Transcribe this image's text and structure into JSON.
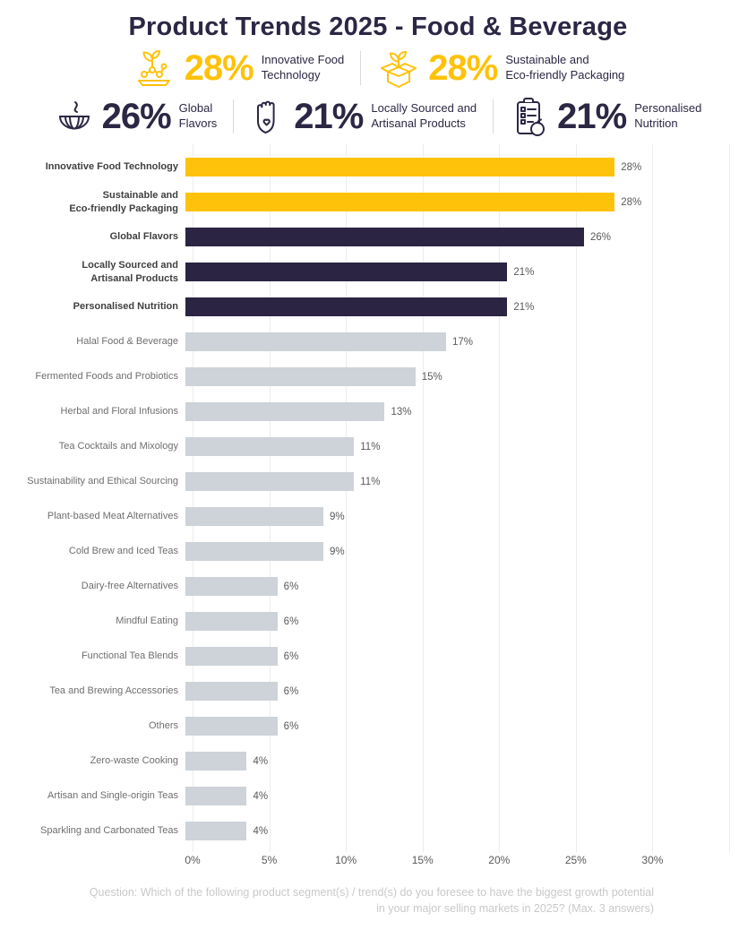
{
  "title": "Product Trends 2025 - Food & Beverage",
  "colors": {
    "yellow": "#FFC20A",
    "navy": "#2B2442",
    "gray": "#CDD3D8",
    "title_navy": "#2B2744"
  },
  "stats": [
    {
      "icon": "food-technology-icon",
      "value": "28%",
      "label": "Innovative Food\nTechnology",
      "color": "yellow"
    },
    {
      "icon": "eco-packaging-icon",
      "value": "28%",
      "label": "Sustainable and\nEco-friendly Packaging",
      "color": "yellow"
    },
    {
      "icon": "globe-flavors-icon",
      "value": "26%",
      "label": "Global\nFlavors",
      "color": "navy"
    },
    {
      "icon": "hand-heart-icon",
      "value": "21%",
      "label": "Locally Sourced and\nArtisanal Products",
      "color": "navy"
    },
    {
      "icon": "clipboard-nutrition-icon",
      "value": "21%",
      "label": "Personalised\nNutrition",
      "color": "navy"
    }
  ],
  "chart_data": {
    "type": "bar",
    "orientation": "horizontal",
    "title": "Product Trends 2025 - Food & Beverage",
    "categories": [
      "Innovative Food Technology",
      "Sustainable and\nEco-friendly Packaging",
      "Global Flavors",
      "Locally Sourced and\nArtisanal Products",
      "Personalised Nutrition",
      "Halal Food & Beverage",
      "Fermented Foods and Probiotics",
      "Herbal and Floral Infusions",
      "Tea Cocktails and Mixology",
      "Sustainability and Ethical Sourcing",
      "Plant-based Meat Alternatives",
      "Cold Brew and Iced Teas",
      "Dairy-free Alternatives",
      "Mindful Eating",
      "Functional Tea Blends",
      "Tea and Brewing Accessories",
      "Others",
      "Zero-waste Cooking",
      "Artisan and Single-origin Teas",
      "Sparkling and Carbonated Teas"
    ],
    "values": [
      28,
      28,
      26,
      21,
      21,
      17,
      15,
      13,
      11,
      11,
      9,
      9,
      6,
      6,
      6,
      6,
      6,
      4,
      4,
      4
    ],
    "value_labels": [
      "28%",
      "28%",
      "26%",
      "21%",
      "21%",
      "17%",
      "15%",
      "13%",
      "11%",
      "11%",
      "9%",
      "9%",
      "6%",
      "6%",
      "6%",
      "6%",
      "6%",
      "4%",
      "4%",
      "4%"
    ],
    "bar_colors": [
      "yellow",
      "yellow",
      "navy",
      "navy",
      "navy",
      "gray",
      "gray",
      "gray",
      "gray",
      "gray",
      "gray",
      "gray",
      "gray",
      "gray",
      "gray",
      "gray",
      "gray",
      "gray",
      "gray",
      "gray"
    ],
    "emphasis": [
      true,
      true,
      true,
      true,
      true,
      false,
      false,
      false,
      false,
      false,
      false,
      false,
      false,
      false,
      false,
      false,
      false,
      false,
      false,
      false
    ],
    "xticks": [
      "0%",
      "5%",
      "10%",
      "15%",
      "20%",
      "25%",
      "30%"
    ],
    "xtick_values": [
      0,
      5,
      10,
      15,
      20,
      25,
      30
    ],
    "gridline_values": [
      0,
      5,
      10,
      15,
      20,
      25,
      30,
      35
    ],
    "xlim": [
      0,
      35
    ],
    "grid": "vertical-light",
    "legend": "none"
  },
  "footer": {
    "question": "Question: Which of the following product segment(s) / trend(s) do you foresee to have the biggest growth potential in your major selling markets in 2025? (Max. 3 answers)"
  }
}
